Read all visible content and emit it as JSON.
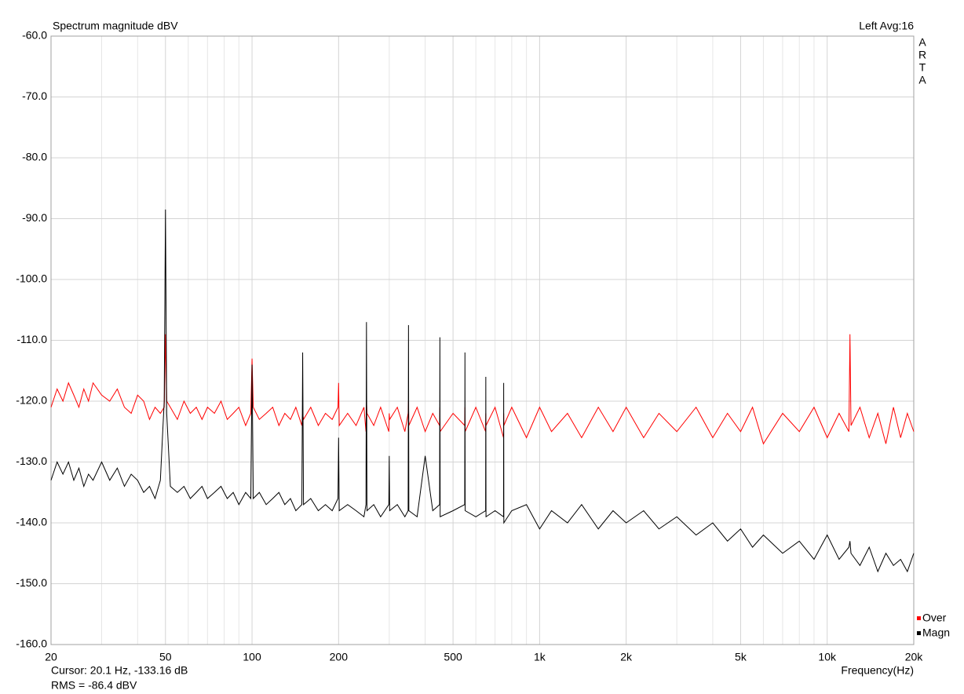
{
  "chart_data": {
    "type": "line",
    "title": "Spectrum magnitude dBV",
    "channel_label": "Left  Avg:16",
    "brand_letters": [
      "A",
      "R",
      "T",
      "A"
    ],
    "xlabel": "Frequency(Hz)",
    "cursor_text": "Cursor:   20.1 Hz, -133.16 dB",
    "rms_text": "RMS =  -86.4 dBV",
    "rms_color": "#cc0000",
    "xscale": "log",
    "grid": true,
    "legend": "right-bottom",
    "xlim": [
      20,
      20000
    ],
    "ylim": [
      -160,
      -60
    ],
    "xticks": [
      20,
      50,
      100,
      200,
      500,
      {
        "value": 1000,
        "label": "1k"
      },
      {
        "value": 2000,
        "label": "2k"
      },
      {
        "value": 5000,
        "label": "5k"
      },
      {
        "value": 10000,
        "label": "10k"
      },
      {
        "value": 20000,
        "label": "20k"
      }
    ],
    "xminorticks": [
      30,
      40,
      60,
      70,
      80,
      90,
      300,
      400,
      600,
      700,
      800,
      900,
      3000,
      4000,
      6000,
      7000,
      8000,
      9000
    ],
    "yticks": [
      {
        "value": -60,
        "label": "-60.0"
      },
      {
        "value": -70,
        "label": "-70.0"
      },
      {
        "value": -80,
        "label": "-80.0"
      },
      {
        "value": -90,
        "label": "-90.0"
      },
      {
        "value": -100,
        "label": "-100.0"
      },
      {
        "value": -110,
        "label": "-110.0"
      },
      {
        "value": -120,
        "label": "-120.0"
      },
      {
        "value": -130,
        "label": "-130.0"
      },
      {
        "value": -140,
        "label": "-140.0"
      },
      {
        "value": -150,
        "label": "-150.0"
      },
      {
        "value": -160,
        "label": "-160.0"
      }
    ],
    "x": [
      20,
      21,
      22,
      23,
      24,
      25,
      26,
      27,
      28,
      30,
      32,
      34,
      36,
      38,
      40,
      42,
      44,
      46,
      48,
      49.5,
      50,
      50.5,
      52,
      55,
      58,
      61,
      64,
      67,
      70,
      74,
      78,
      82,
      86,
      90,
      95,
      99,
      100,
      101,
      106,
      112,
      118,
      124,
      130,
      136,
      142,
      149,
      150,
      151,
      160,
      170,
      180,
      190,
      199,
      200,
      201,
      215,
      230,
      245,
      249,
      250,
      251,
      265,
      280,
      299,
      300,
      301,
      320,
      340,
      349,
      350,
      351,
      375,
      400,
      425,
      449,
      450,
      451,
      500,
      549,
      550,
      551,
      600,
      649,
      650,
      651,
      700,
      749,
      750,
      751,
      800,
      900,
      1000,
      1100,
      1250,
      1400,
      1600,
      1800,
      2000,
      2300,
      2600,
      3000,
      3500,
      4000,
      4500,
      5000,
      5500,
      6000,
      7000,
      8000,
      9000,
      10000,
      11000,
      11900,
      12000,
      12100,
      13000,
      14000,
      15000,
      16000,
      17000,
      18000,
      19000,
      20000
    ],
    "series": [
      {
        "name": "Over",
        "color": "#ff0000",
        "values": [
          -121,
          -118,
          -120,
          -117,
          -119,
          -121,
          -118,
          -120,
          -117,
          -119,
          -120,
          -118,
          -121,
          -122,
          -119,
          -120,
          -123,
          -121,
          -122,
          -121,
          -109,
          -120,
          -121,
          -123,
          -120,
          -122,
          -121,
          -123,
          -121,
          -122,
          -120,
          -123,
          -122,
          -121,
          -124,
          -122,
          -113,
          -121,
          -123,
          -122,
          -121,
          -124,
          -122,
          -123,
          -121,
          -124,
          -122,
          -123,
          -121,
          -124,
          -122,
          -123,
          -121,
          -117,
          -124,
          -122,
          -124,
          -121,
          -125,
          -120,
          -122,
          -124,
          -121,
          -125,
          -122,
          -123,
          -121,
          -125,
          -122,
          -120,
          -124,
          -121,
          -125,
          -122,
          -124,
          -121,
          -125,
          -122,
          -124,
          -121,
          -125,
          -121,
          -125,
          -122,
          -124,
          -121,
          -126,
          -122,
          -124,
          -121,
          -126,
          -121,
          -125,
          -122,
          -126,
          -121,
          -125,
          -121,
          -126,
          -122,
          -125,
          -121,
          -126,
          -122,
          -125,
          -121,
          -127,
          -122,
          -125,
          -121,
          -126,
          -122,
          -125,
          -109,
          -124,
          -121,
          -126,
          -122,
          -127,
          -121,
          -126,
          -122,
          -125
        ]
      },
      {
        "name": "Magn",
        "color": "#000000",
        "values": [
          -133,
          -130,
          -132,
          -130,
          -133,
          -131,
          -134,
          -132,
          -133,
          -130,
          -133,
          -131,
          -134,
          -132,
          -133,
          -135,
          -134,
          -136,
          -133,
          -120,
          -88.5,
          -122,
          -134,
          -135,
          -134,
          -136,
          -135,
          -134,
          -136,
          -135,
          -134,
          -136,
          -135,
          -137,
          -135,
          -136,
          -114,
          -136,
          -135,
          -137,
          -136,
          -135,
          -137,
          -136,
          -138,
          -137,
          -112,
          -137,
          -136,
          -138,
          -137,
          -138,
          -136,
          -126,
          -138,
          -137,
          -138,
          -139,
          -137,
          -107,
          -138,
          -137,
          -139,
          -137,
          -129,
          -138,
          -137,
          -139,
          -138,
          -107.5,
          -138,
          -139,
          -129,
          -138,
          -137,
          -109.5,
          -139,
          -138,
          -137,
          -112,
          -138,
          -139,
          -138,
          -116,
          -139,
          -138,
          -139,
          -117,
          -140,
          -138,
          -137,
          -141,
          -138,
          -140,
          -137,
          -141,
          -138,
          -140,
          -138,
          -141,
          -139,
          -142,
          -140,
          -143,
          -141,
          -144,
          -142,
          -145,
          -143,
          -146,
          -142,
          -146,
          -144,
          -143,
          -145,
          -147,
          -144,
          -148,
          -145,
          -147,
          -146,
          -148,
          -145
        ]
      }
    ]
  }
}
